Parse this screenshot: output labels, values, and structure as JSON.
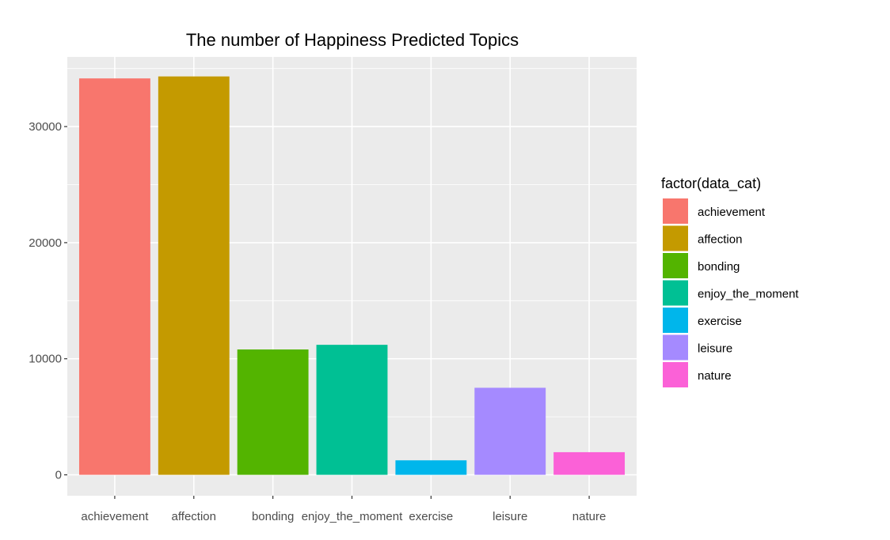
{
  "chart_data": {
    "type": "bar",
    "title": "The number of Happiness Predicted Topics",
    "xlabel": "",
    "ylabel": "",
    "categories": [
      "achievement",
      "affection",
      "bonding",
      "enjoy_the_moment",
      "exercise",
      "leisure",
      "nature"
    ],
    "values": [
      34150,
      34320,
      10800,
      11200,
      1250,
      7500,
      1950
    ],
    "colors": [
      "#F8766D",
      "#C49A00",
      "#53B400",
      "#00C094",
      "#00B6EB",
      "#A58AFF",
      "#FB61D7"
    ],
    "ylim": [
      -1800,
      36000
    ],
    "yticks": [
      0,
      10000,
      20000,
      30000
    ],
    "ytick_labels": [
      "0",
      "10000",
      "20000",
      "30000"
    ],
    "grid": true,
    "panel_background": "#EBEBEB",
    "legend": {
      "title": "factor(data_cat)",
      "position": "right",
      "items": [
        "achievement",
        "affection",
        "bonding",
        "enjoy_the_moment",
        "exercise",
        "leisure",
        "nature"
      ]
    }
  }
}
